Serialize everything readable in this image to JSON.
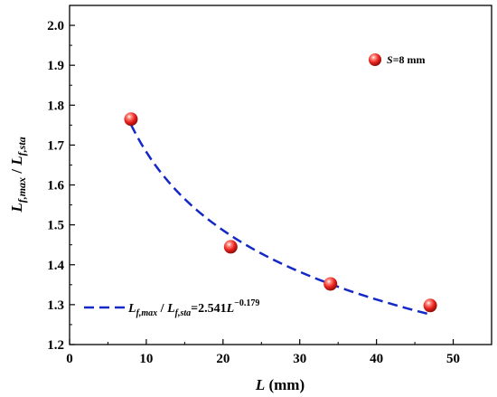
{
  "chart_data": {
    "type": "scatter",
    "xlabel": {
      "main": "L",
      "suffix": " (mm)"
    },
    "ylabel": {
      "num": "L",
      "num_sub": "f,max",
      "sep": " / ",
      "den": "L",
      "den_sub": "f,sta"
    },
    "xlim": [
      0,
      55
    ],
    "ylim": [
      1.2,
      2.05
    ],
    "x_ticks": [
      "0",
      "10",
      "20",
      "30",
      "40",
      "50"
    ],
    "y_ticks": [
      "1.2",
      "1.3",
      "1.4",
      "1.5",
      "1.6",
      "1.7",
      "1.8",
      "1.9",
      "2.0"
    ],
    "grid": false,
    "series": [
      {
        "kind": "points",
        "color": "#e8201c",
        "x": [
          8,
          21,
          34,
          47
        ],
        "y": [
          1.765,
          1.445,
          1.352,
          1.298
        ]
      },
      {
        "kind": "fit",
        "color": "#1428c8",
        "coef": 2.541,
        "exponent": -0.179,
        "x_range": [
          8,
          47
        ]
      }
    ],
    "legend": {
      "position": "top-right",
      "italic": "S",
      "rest": "=8 mm"
    },
    "fit_label": {
      "a": "L",
      "a_sub": "f,max",
      "sep": " / ",
      "b": "L",
      "b_sub": "f,sta",
      "eq": "=2.541",
      "var": "L",
      "exp": "−0.179"
    }
  }
}
